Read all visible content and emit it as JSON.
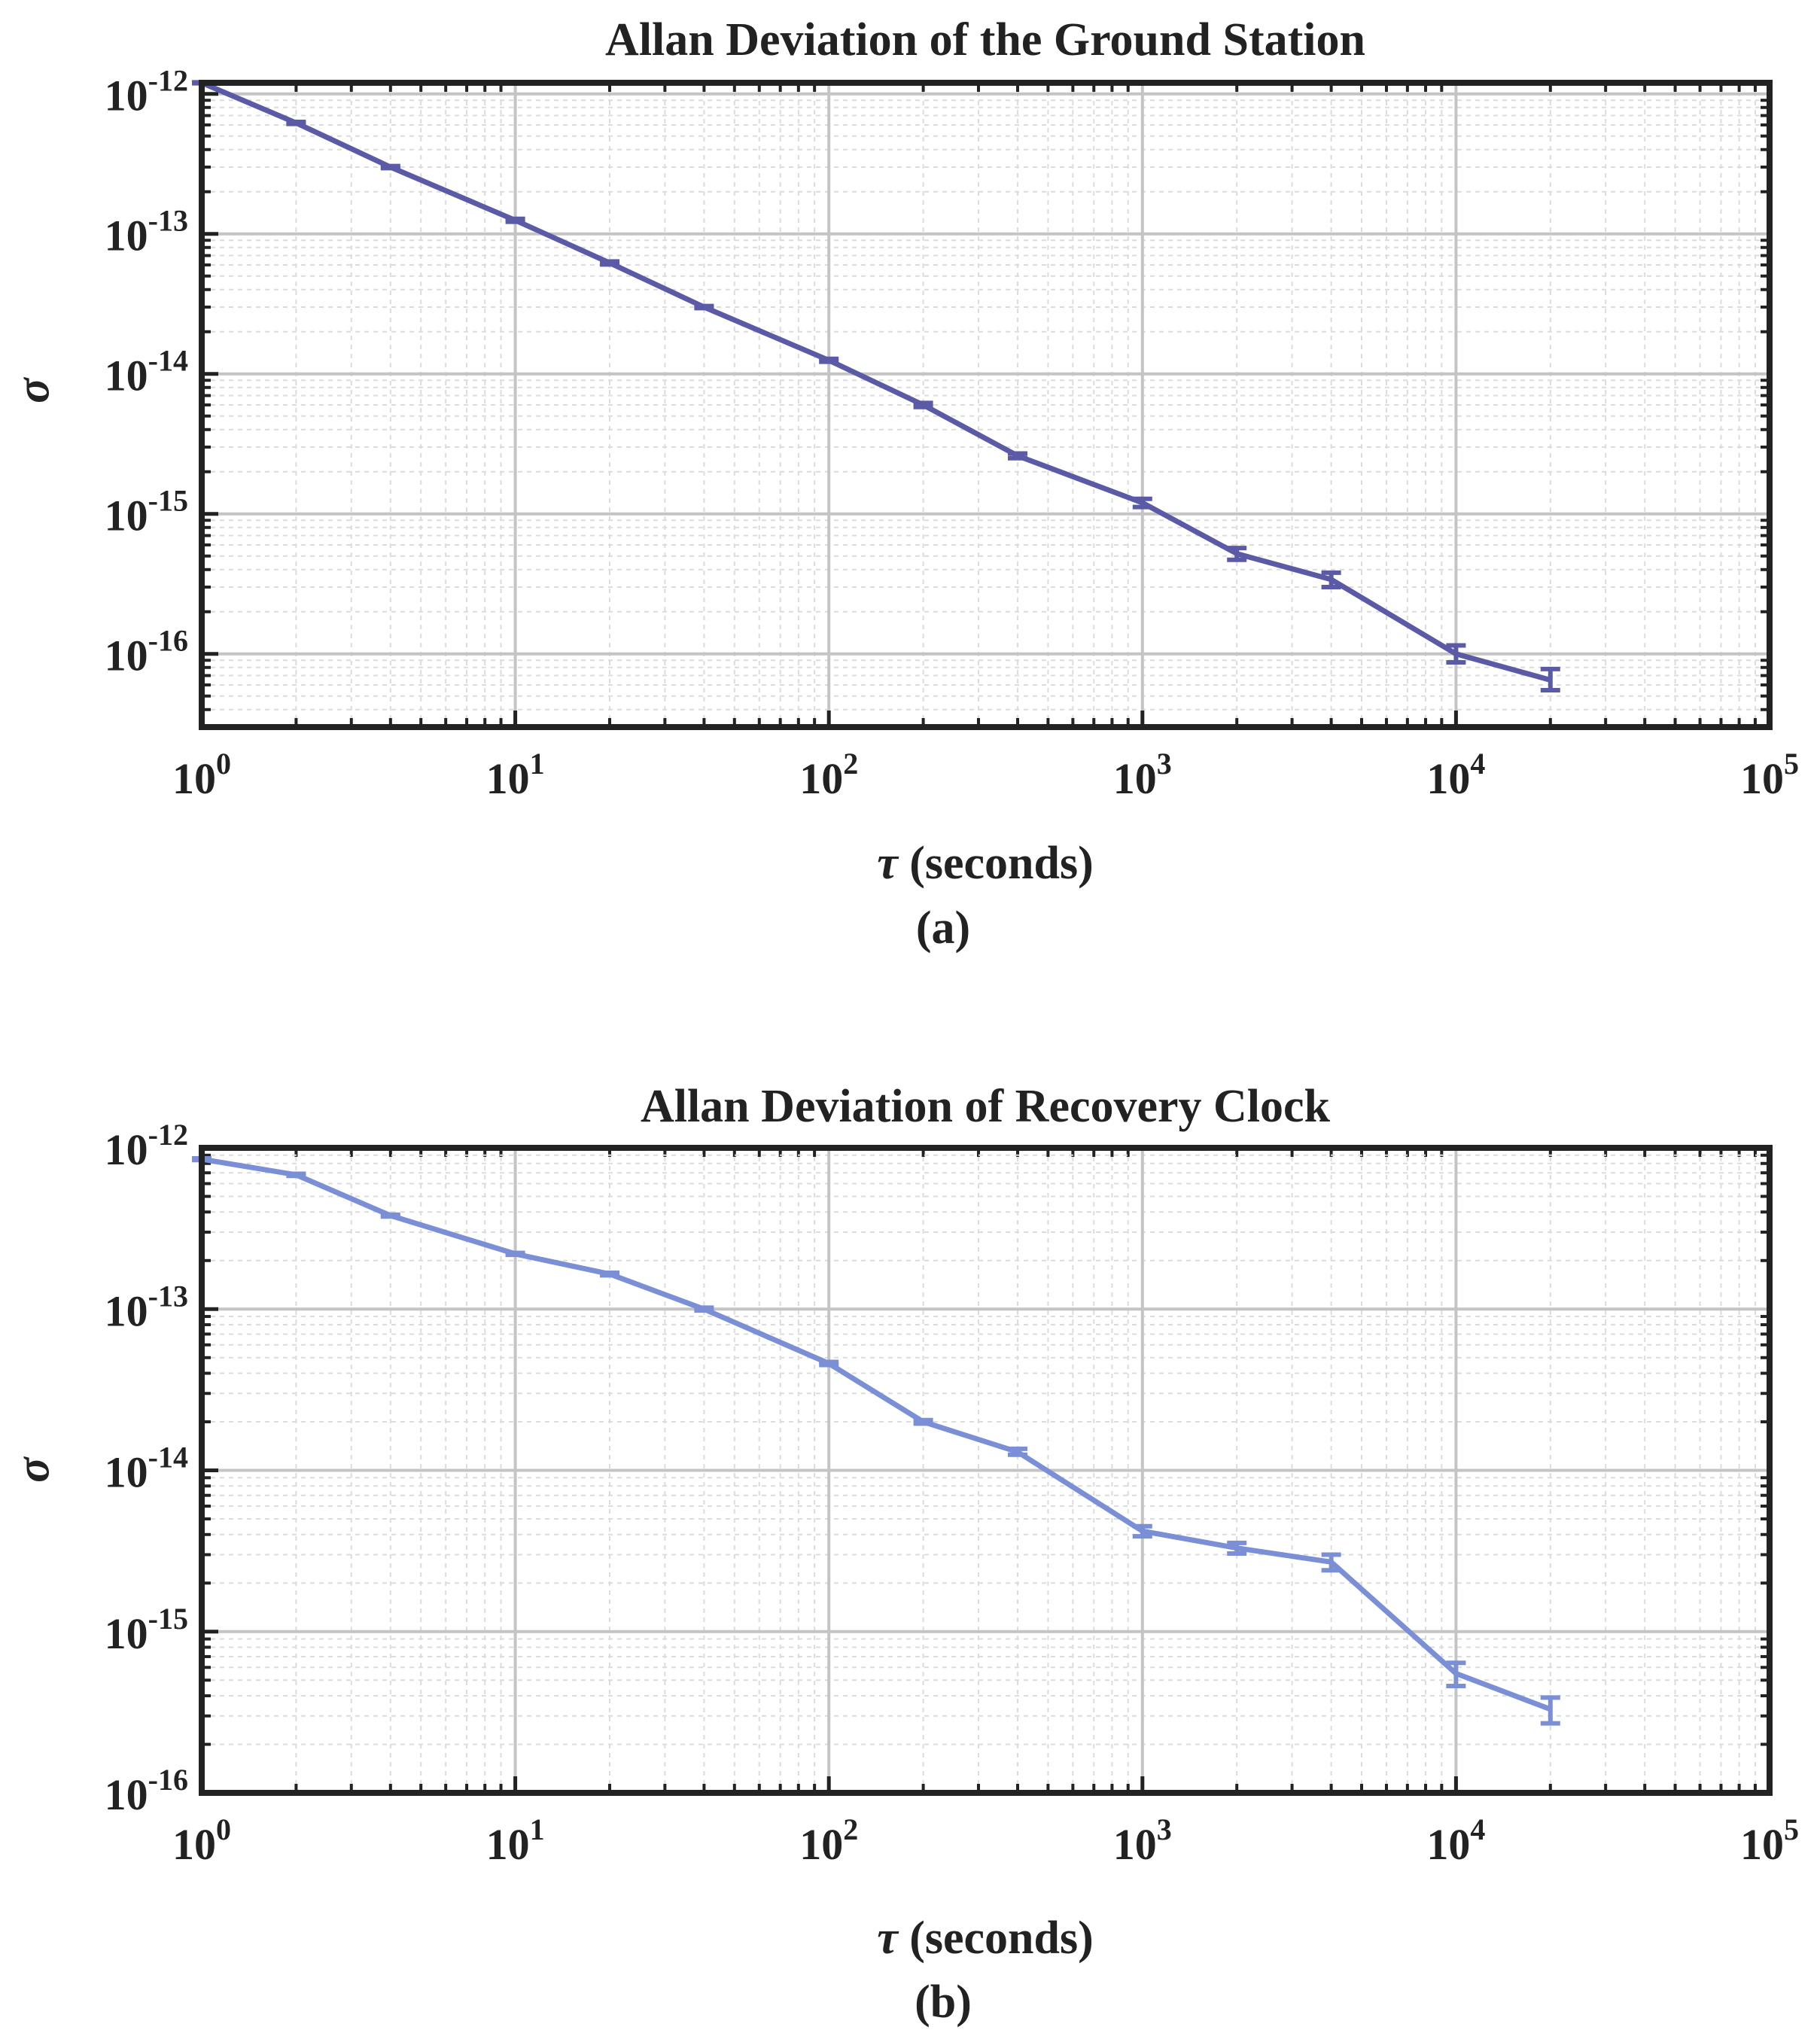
{
  "colors": {
    "panel_a": "#5b5aa6",
    "panel_b": "#7a8fd6",
    "axis": "#222222",
    "grid": "#d0d0d0"
  },
  "chart_data": [
    {
      "type": "line",
      "title": "Allan Deviation of the Ground Station",
      "xlabel": "(seconds)",
      "xlabel_symbol": "τ",
      "ylabel": "σ",
      "caption": "(a)",
      "xscale": "log",
      "yscale": "log",
      "xlim": [
        1,
        100000
      ],
      "ylim": [
        3e-17,
        1.2e-12
      ],
      "grid": true,
      "minor_grid": true,
      "xticks": [
        1,
        10,
        100,
        1000,
        10000,
        100000
      ],
      "yticks": [
        1e-16,
        1e-15,
        1e-14,
        1e-13,
        1e-12
      ],
      "xtick_labels": [
        [
          "10",
          "0"
        ],
        [
          "10",
          "1"
        ],
        [
          "10",
          "2"
        ],
        [
          "10",
          "3"
        ],
        [
          "10",
          "4"
        ],
        [
          "10",
          "5"
        ]
      ],
      "ytick_labels": [
        [
          "10",
          "-16"
        ],
        [
          "10",
          "-15"
        ],
        [
          "10",
          "-14"
        ],
        [
          "10",
          "-13"
        ],
        [
          "10",
          "-12"
        ]
      ],
      "series": [
        {
          "color": "#5b5aa6",
          "x": [
            1,
            2,
            4,
            10,
            20,
            40,
            100,
            200,
            400,
            1000,
            2000,
            4000,
            10000,
            20000
          ],
          "y": [
            1.2e-12,
            6.2e-13,
            3e-13,
            1.25e-13,
            6.2e-14,
            3e-14,
            1.25e-14,
            6e-15,
            2.6e-15,
            1.2e-15,
            5.2e-16,
            3.4e-16,
            1e-16,
            6.5e-17
          ],
          "err_low": [
            1.19e-12,
            6.1e-13,
            2.95e-13,
            1.22e-13,
            6.05e-14,
            2.95e-14,
            1.22e-14,
            5.8e-15,
            2.5e-15,
            1.12e-15,
            4.7e-16,
            3e-16,
            8.7e-17,
            5.5e-17
          ],
          "err_high": [
            1.21e-12,
            6.3e-13,
            3.05e-13,
            1.28e-13,
            6.35e-14,
            3.05e-14,
            1.28e-14,
            6.2e-15,
            2.7e-15,
            1.28e-15,
            5.7e-16,
            3.8e-16,
            1.15e-16,
            7.8e-17
          ]
        }
      ]
    },
    {
      "type": "line",
      "title": "Allan Deviation of Recovery Clock",
      "xlabel": "(seconds)",
      "xlabel_symbol": "τ",
      "ylabel": "σ",
      "caption": "(b)",
      "xscale": "log",
      "yscale": "log",
      "xlim": [
        1,
        100000
      ],
      "ylim": [
        1e-16,
        1e-12
      ],
      "grid": true,
      "minor_grid": true,
      "xticks": [
        1,
        10,
        100,
        1000,
        10000,
        100000
      ],
      "yticks": [
        1e-16,
        1e-15,
        1e-14,
        1e-13,
        1e-12
      ],
      "xtick_labels": [
        [
          "10",
          "0"
        ],
        [
          "10",
          "1"
        ],
        [
          "10",
          "2"
        ],
        [
          "10",
          "3"
        ],
        [
          "10",
          "4"
        ],
        [
          "10",
          "5"
        ]
      ],
      "ytick_labels": [
        [
          "10",
          "-16"
        ],
        [
          "10",
          "-15"
        ],
        [
          "10",
          "-14"
        ],
        [
          "10",
          "-13"
        ],
        [
          "10",
          "-12"
        ]
      ],
      "series": [
        {
          "color": "#7a8fd6",
          "x": [
            1,
            2,
            4,
            10,
            20,
            40,
            100,
            200,
            400,
            1000,
            2000,
            4000,
            10000,
            20000
          ],
          "y": [
            8.5e-13,
            6.8e-13,
            3.8e-13,
            2.2e-13,
            1.65e-13,
            1e-13,
            4.6e-14,
            2e-14,
            1.3e-14,
            4.2e-15,
            3.3e-15,
            2.7e-15,
            5.5e-16,
            3.3e-16
          ],
          "err_low": [
            8.4e-13,
            6.7e-13,
            3.75e-13,
            2.17e-13,
            1.62e-13,
            9.8e-14,
            4.5e-14,
            1.95e-14,
            1.25e-14,
            3.9e-15,
            3.05e-15,
            2.4e-15,
            4.6e-16,
            2.7e-16
          ],
          "err_high": [
            8.6e-13,
            6.9e-13,
            3.85e-13,
            2.23e-13,
            1.68e-13,
            1.02e-13,
            4.7e-14,
            2.05e-14,
            1.36e-14,
            4.5e-15,
            3.55e-15,
            3e-15,
            6.4e-16,
            3.9e-16
          ]
        }
      ]
    }
  ]
}
